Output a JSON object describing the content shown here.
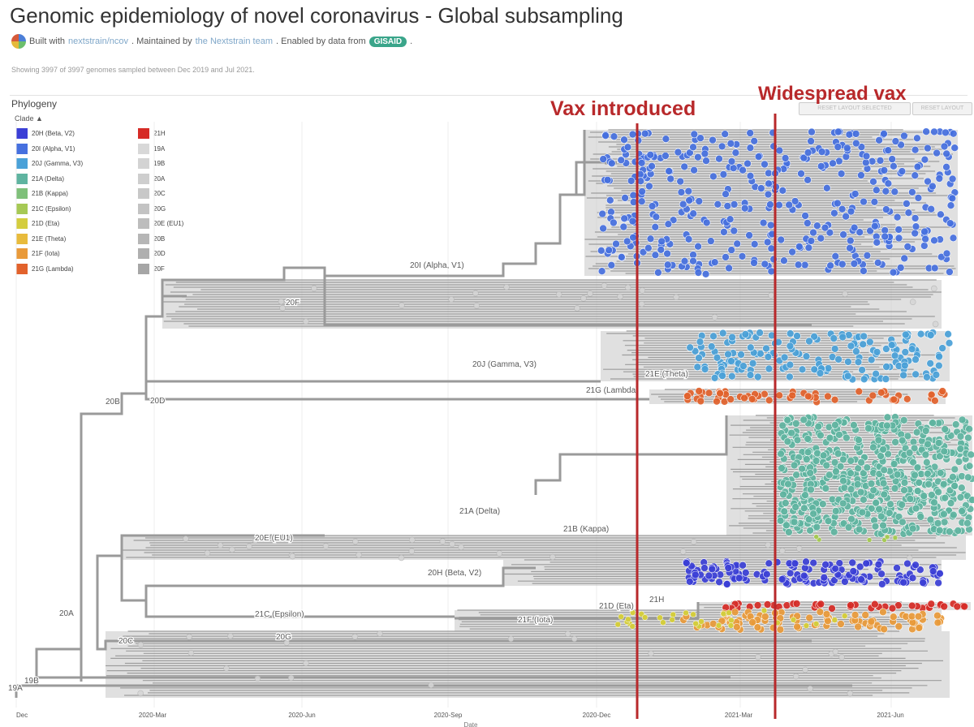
{
  "header": {
    "title": "Genomic epidemiology of novel coronavirus - Global subsampling",
    "built_with": "Built with",
    "built_link": "nextstrain/ncov",
    "maintained": ". Maintained by",
    "team_link": "the Nextstrain team",
    "enabled": ". Enabled by data from",
    "gisaid": "GISAID",
    "period": ".",
    "showing": "Showing 3997 of 3997 genomes sampled between Dec 2019 and Jul 2021."
  },
  "panel": {
    "title": "Phylogeny",
    "clade_label": "Clade",
    "controls": [
      "RESET LAYOUT SELECTED",
      "RESET LAYOUT"
    ]
  },
  "legend": [
    {
      "label": "20H (Beta, V2)",
      "color": "#3b3fd6"
    },
    {
      "label": "20I (Alpha, V1)",
      "color": "#4670df"
    },
    {
      "label": "20J (Gamma, V3)",
      "color": "#4aa1d8"
    },
    {
      "label": "21A (Delta)",
      "color": "#5fb4a0"
    },
    {
      "label": "21B (Kappa)",
      "color": "#7fc07a"
    },
    {
      "label": "21C (Epsilon)",
      "color": "#a6c955"
    },
    {
      "label": "21D (Eta)",
      "color": "#d4cd3e"
    },
    {
      "label": "21E (Theta)",
      "color": "#e8bb3c"
    },
    {
      "label": "21F (Iota)",
      "color": "#e99a3a"
    },
    {
      "label": "21G (Lambda)",
      "color": "#e2622c"
    },
    {
      "label": "21H",
      "color": "#d62b26"
    },
    {
      "label": "19A",
      "color": "#d8d8d8"
    },
    {
      "label": "19B",
      "color": "#d3d3d3"
    },
    {
      "label": "20A",
      "color": "#cecece"
    },
    {
      "label": "20C",
      "color": "#c8c8c8"
    },
    {
      "label": "20G",
      "color": "#c3c3c3"
    },
    {
      "label": "20E (EU1)",
      "color": "#bdbdbd"
    },
    {
      "label": "20B",
      "color": "#b6b6b6"
    },
    {
      "label": "20D",
      "color": "#afafaf"
    },
    {
      "label": "20F",
      "color": "#a6a6a6"
    }
  ],
  "annotations": {
    "vax_introduced": "Vax introduced",
    "widespread_vax": "Widespread vax",
    "color": "#b8292b"
  },
  "axis": {
    "ticks": [
      "Dec",
      "2020-Mar",
      "2020-Jun",
      "2020-Sep",
      "2020-Dec",
      "2021-Mar",
      "2021-Jun"
    ],
    "label": "Date"
  },
  "clade_labels": [
    "20I (Alpha, V1)",
    "20F",
    "20J (Gamma, V3)",
    "21E (Theta)",
    "21G (Lambda)",
    "20B",
    "20D",
    "21A (Delta)",
    "21B (Kappa)",
    "20E (EU1)",
    "20H (Beta, V2)",
    "20A",
    "21D (Eta)",
    "21H",
    "21C (Epsilon)",
    "21F (Iota)",
    "20C",
    "20G",
    "19B",
    "19A"
  ]
}
